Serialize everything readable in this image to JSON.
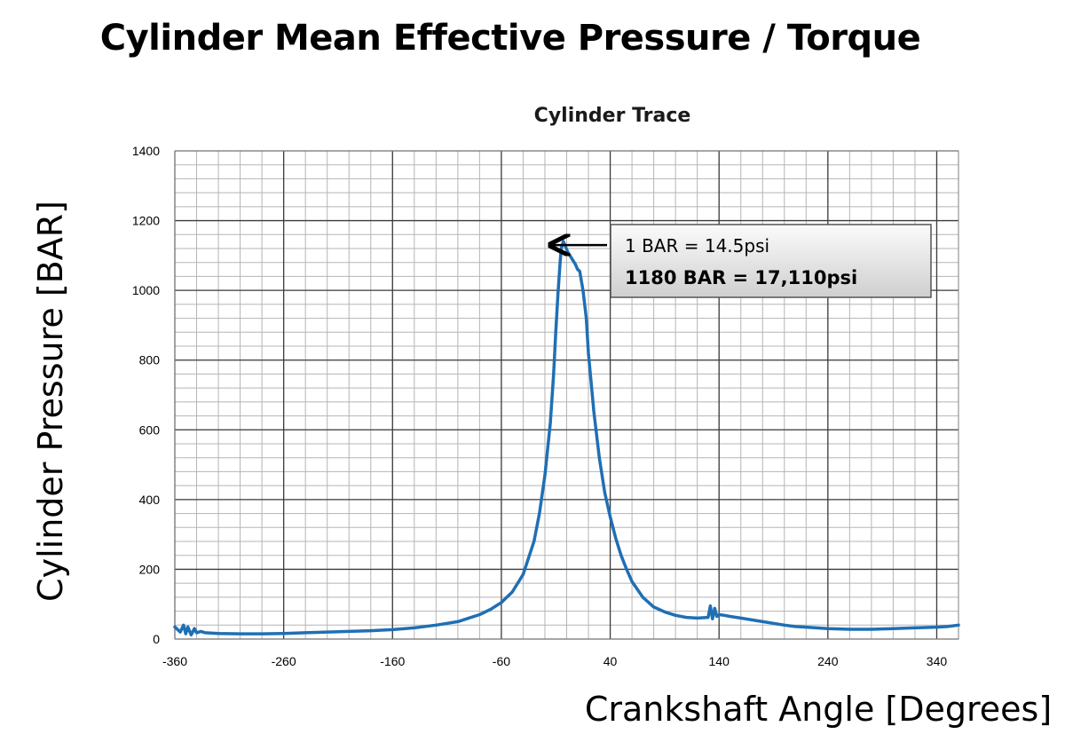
{
  "slide": {
    "title": "Cylinder Mean Effective Pressure / Torque"
  },
  "chart_data": {
    "type": "line",
    "title": "Cylinder Trace",
    "xlabel": "Crankshaft Angle [Degrees]",
    "ylabel": "Cylinder Pressure [BAR]",
    "xlim": [
      -360,
      360
    ],
    "ylim": [
      0,
      1400
    ],
    "x_ticks": [
      -360,
      -260,
      -160,
      -60,
      40,
      140,
      240,
      340
    ],
    "y_ticks": [
      0,
      200,
      400,
      600,
      800,
      1000,
      1200,
      1400
    ],
    "grid": true,
    "legend": "none",
    "line_color": "#1f6fb4",
    "series": [
      {
        "x": [
          -360,
          -355,
          -352,
          -350,
          -348,
          -345,
          -342,
          -340,
          -336,
          -332,
          -320,
          -300,
          -280,
          -260,
          -240,
          -220,
          -200,
          -180,
          -160,
          -140,
          -120,
          -100,
          -90,
          -80,
          -70,
          -60,
          -50,
          -40,
          -30,
          -25,
          -20,
          -15,
          -12,
          -10,
          -8,
          -6,
          -5,
          -3,
          -1,
          1,
          3,
          5,
          8,
          10,
          12,
          15,
          18,
          20,
          25,
          30,
          35,
          40,
          45,
          50,
          55,
          60,
          70,
          80,
          90,
          100,
          110,
          120,
          130,
          132,
          134,
          136,
          138,
          140,
          145,
          150,
          160,
          170,
          180,
          190,
          200,
          210,
          220,
          240,
          260,
          280,
          300,
          320,
          340,
          350,
          360
        ],
        "y": [
          35,
          20,
          40,
          15,
          35,
          12,
          30,
          18,
          22,
          18,
          16,
          15,
          15,
          16,
          18,
          20,
          22,
          24,
          27,
          32,
          40,
          50,
          60,
          70,
          85,
          105,
          135,
          185,
          280,
          360,
          470,
          620,
          760,
          880,
          990,
          1080,
          1120,
          1140,
          1125,
          1110,
          1100,
          1090,
          1075,
          1060,
          1055,
          1000,
          920,
          820,
          650,
          520,
          420,
          350,
          290,
          240,
          200,
          165,
          120,
          92,
          78,
          68,
          62,
          60,
          62,
          95,
          58,
          88,
          65,
          70,
          68,
          65,
          60,
          55,
          50,
          45,
          40,
          36,
          34,
          30,
          28,
          28,
          30,
          32,
          34,
          36,
          40
        ]
      }
    ],
    "annotation": {
      "line1": "1 BAR = 14.5psi",
      "line2": "1180 BAR = 17,110psi",
      "arrow_target": {
        "x": -13,
        "y": 1130
      }
    }
  }
}
